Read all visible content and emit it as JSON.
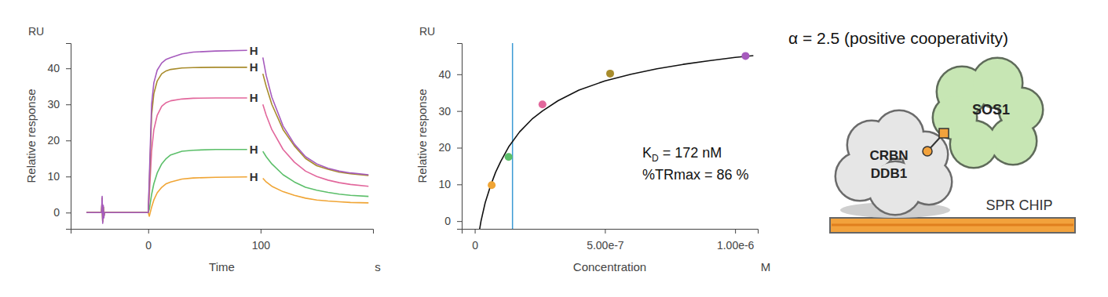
{
  "chart_data": [
    {
      "type": "line",
      "y_unit": "RU",
      "y_label": "Relative response",
      "x_label": "Time",
      "x_unit": "s",
      "x": [
        -55,
        -41.5,
        -41,
        -40.5,
        -40,
        -39.5,
        -39,
        0,
        1,
        3,
        5,
        8,
        12,
        16,
        20,
        30,
        40,
        60,
        88,
        95,
        102,
        105,
        110,
        120,
        130,
        140,
        150,
        160,
        170,
        180,
        196
      ],
      "series": [
        {
          "color": "#f0a535",
          "values": [
            0,
            0,
            3.5,
            -2,
            1.5,
            -1,
            0,
            0,
            -1,
            1.5,
            3.5,
            5.5,
            7,
            8,
            8.5,
            9.3,
            9.6,
            9.8,
            9.9,
            null,
            9.5,
            8.5,
            7.3,
            5.8,
            4.8,
            4,
            3.5,
            3.2,
            3,
            2.8,
            2.7
          ]
        },
        {
          "color": "#5cbf6a",
          "values": [
            0,
            0,
            3.5,
            -2.5,
            1.5,
            -1,
            0,
            0,
            1,
            5,
            8,
            11,
            13.5,
            15,
            16,
            17,
            17.3,
            17.5,
            17.5,
            null,
            17,
            15.5,
            13.5,
            10.5,
            8.5,
            7,
            6.2,
            5.6,
            5.1,
            4.8,
            4.5
          ]
        },
        {
          "color": "#e2679c",
          "values": [
            0,
            0,
            4,
            -2.5,
            1.5,
            -1,
            0,
            0,
            5,
            17,
            23,
            27,
            29.5,
            30.5,
            31,
            31.5,
            31.7,
            31.8,
            31.8,
            null,
            30,
            27,
            23,
            17.5,
            14,
            11.5,
            10,
            9,
            8.3,
            7.8,
            7.3
          ]
        },
        {
          "color": "#a88c2c",
          "values": [
            0,
            0,
            4,
            -2.5,
            1.5,
            -1,
            0,
            0,
            8,
            27,
            33,
            36.5,
            38.5,
            39.3,
            39.7,
            40.1,
            40.2,
            40.3,
            40.3,
            null,
            38.5,
            35,
            30,
            23,
            18.5,
            15,
            13,
            12,
            11.2,
            10.8,
            10.3
          ]
        },
        {
          "color": "#a65bbd",
          "values": [
            0,
            0,
            4.5,
            -3,
            2,
            -1.5,
            0,
            0,
            10,
            30,
            36,
            39.5,
            41.5,
            42.5,
            43,
            44,
            44.5,
            44.8,
            45,
            null,
            43,
            38,
            32,
            24,
            19,
            15.5,
            13.5,
            12.3,
            11.5,
            11,
            10.5
          ]
        }
      ],
      "report_points": {
        "label": "H",
        "x": [
          94,
          94,
          94,
          94,
          94
        ],
        "values": [
          9.9,
          17.5,
          31.8,
          40.3,
          45
        ]
      },
      "xlim": [
        -69,
        200
      ],
      "xticks": [
        0,
        100
      ],
      "ylim": [
        -4.5,
        47
      ],
      "yticks": [
        0,
        10,
        20,
        30,
        40
      ],
      "grid": false
    },
    {
      "type": "scatter",
      "y_unit": "RU",
      "y_label": "Relative response",
      "x_label": "Concentration",
      "x_unit": "M",
      "x": [
        6.5e-08,
        1.3e-07,
        2.6e-07,
        5.2e-07,
        1.04e-06
      ],
      "values": [
        9.8,
        17.5,
        31.8,
        40.2,
        45
      ],
      "colors": [
        "#f0a535",
        "#5cbf6a",
        "#e2679c",
        "#a88c2c",
        "#a65bbd"
      ],
      "fit": {
        "color": "#111111",
        "x": [
          1.8e-08,
          2.4e-08,
          4e-08,
          6e-08,
          8e-08,
          1e-07,
          1.3e-07,
          1.72e-07,
          2.2e-07,
          2.6e-07,
          3.2e-07,
          4e-07,
          5e-07,
          6e-07,
          7e-07,
          8e-07,
          9e-07,
          1e-06,
          1.07e-06
        ],
        "values": [
          -2.5,
          0,
          5,
          9.5,
          13.3,
          16.3,
          20.2,
          24.3,
          27.8,
          30,
          32.8,
          35.7,
          38.2,
          40,
          41.5,
          42.7,
          43.7,
          44.6,
          45.1
        ]
      },
      "reference_x": 1.45e-07,
      "reference_color": "#3a9ad4",
      "annotations": [
        {
          "text": "K",
          "subscript": "D",
          "suffix": " = 172 nM"
        },
        {
          "text": "%TRmax = 86 %"
        }
      ],
      "xlim": [
        -5e-08,
        1.087e-06
      ],
      "xticks": [
        0,
        {
          "value": 5e-07,
          "label": "5.00e-7"
        },
        {
          "value": 1e-06,
          "label": "1.00e-6"
        }
      ],
      "ylim": [
        -2.1,
        48.5
      ],
      "yticks": [
        0,
        10,
        20,
        30,
        40
      ],
      "grid": false
    }
  ],
  "diagram": {
    "title": "α = 2.5 (positive cooperativity)",
    "target": "SOS1",
    "ligase": [
      "CRBN",
      "DDB1"
    ],
    "surface": "SPR CHIP"
  }
}
